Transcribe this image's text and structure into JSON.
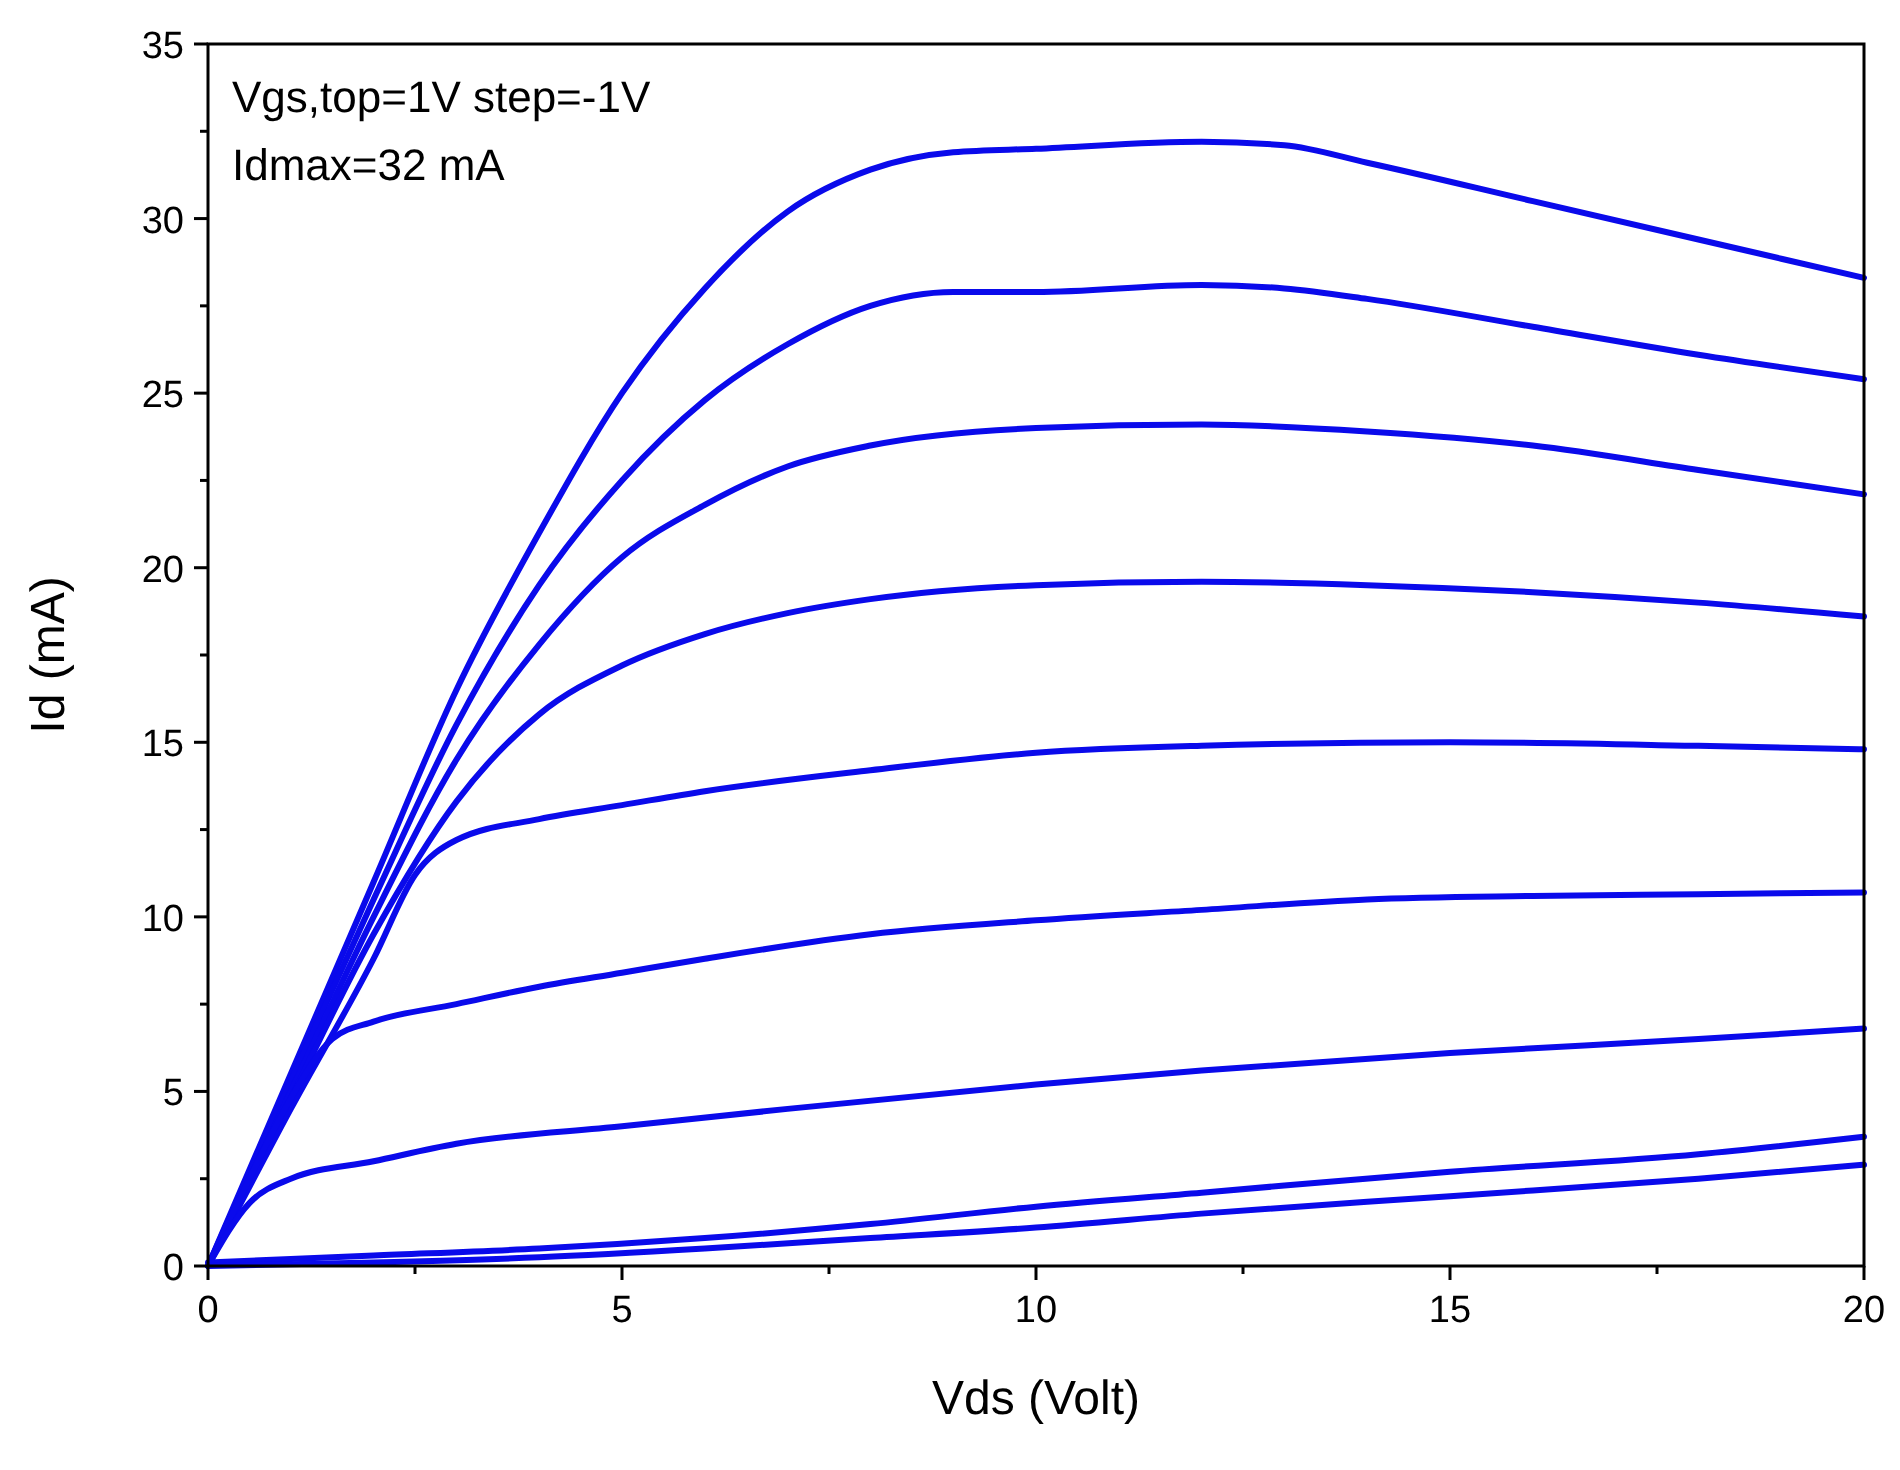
{
  "chart_data": {
    "type": "line",
    "xlabel": "Vds (Volt)",
    "ylabel": "Id (mA)",
    "annotations": [
      "Vgs,top=1V step=-1V",
      "Idmax=32 mA"
    ],
    "xlim": [
      0,
      20
    ],
    "ylim": [
      0,
      35
    ],
    "xticks": [
      0,
      {
        "value": 2.5,
        "label": null
      },
      5,
      {
        "value": 7.5,
        "label": null
      },
      10,
      {
        "value": 12.5,
        "label": null
      },
      15,
      {
        "value": 17.5,
        "label": null
      },
      20
    ],
    "yticks": [
      0,
      {
        "value": 2.5,
        "label": null
      },
      5,
      {
        "value": 7.5,
        "label": null
      },
      10,
      {
        "value": 12.5,
        "label": null
      },
      15,
      {
        "value": 17.5,
        "label": null
      },
      20,
      {
        "value": 22.5,
        "label": null
      },
      25,
      {
        "value": 27.5,
        "label": null
      },
      30,
      {
        "value": 32.5,
        "label": null
      },
      35
    ],
    "grid": false,
    "marker": "none",
    "line_style": "solid",
    "series": [
      {
        "color": "#0a0aeb",
        "x": [
          0,
          1,
          2,
          3,
          4,
          5,
          6,
          7,
          8,
          9,
          10,
          12,
          13,
          14,
          16,
          18,
          20
        ],
        "values": [
          0,
          5.5,
          11,
          16.5,
          21,
          25,
          28,
          30.2,
          31.4,
          31.9,
          32,
          32.2,
          32.1,
          31.6,
          30.5,
          29.4,
          28.3
        ]
      },
      {
        "color": "#0a0aeb",
        "x": [
          0,
          1,
          2,
          3,
          4,
          5,
          6,
          7,
          8,
          9,
          10,
          12,
          13,
          14,
          16,
          18,
          20
        ],
        "values": [
          0,
          5.3,
          10.5,
          15.5,
          19.5,
          22.5,
          24.8,
          26.4,
          27.5,
          27.9,
          27.9,
          28.1,
          28,
          27.7,
          26.9,
          26.1,
          25.4
        ]
      },
      {
        "color": "#0a0aeb",
        "x": [
          0,
          1,
          2,
          3,
          4,
          5,
          6,
          7,
          8,
          10,
          12,
          14,
          16,
          18,
          20
        ],
        "values": [
          0,
          5,
          10,
          14.5,
          17.8,
          20.3,
          21.8,
          22.9,
          23.5,
          24,
          24.1,
          23.9,
          23.5,
          22.8,
          22.1
        ]
      },
      {
        "color": "#0a0aeb",
        "x": [
          0,
          1,
          2,
          3,
          4,
          5,
          6,
          7,
          8,
          10,
          12,
          14,
          16,
          18,
          20
        ],
        "values": [
          0,
          4.8,
          9.5,
          13.3,
          15.8,
          17.2,
          18.1,
          18.7,
          19.1,
          19.5,
          19.6,
          19.5,
          19.3,
          19,
          18.6
        ]
      },
      {
        "color": "#0a0aeb",
        "x": [
          0,
          1,
          2,
          2.5,
          3,
          4,
          5,
          6,
          8,
          10,
          12,
          15,
          18,
          20
        ],
        "values": [
          0,
          4.5,
          8.8,
          11.2,
          12.2,
          12.8,
          13.2,
          13.6,
          14.2,
          14.7,
          14.9,
          15,
          14.9,
          14.8
        ]
      },
      {
        "color": "#0a0aeb",
        "x": [
          0,
          0.5,
          1,
          1.5,
          2,
          3,
          4,
          5,
          6,
          8,
          10,
          12,
          14,
          16,
          18,
          20
        ],
        "values": [
          0,
          2.5,
          4.8,
          6.5,
          7,
          7.5,
          8,
          8.4,
          8.8,
          9.5,
          9.9,
          10.2,
          10.5,
          10.6,
          10.65,
          10.7
        ]
      },
      {
        "color": "#0a0aeb",
        "x": [
          0,
          0.5,
          1,
          2,
          3,
          5,
          7,
          10,
          12,
          15,
          18,
          20
        ],
        "values": [
          0,
          1.8,
          2.5,
          3,
          3.5,
          4,
          4.5,
          5.2,
          5.6,
          6.1,
          6.5,
          6.8
        ]
      },
      {
        "color": "#0a0aeb",
        "x": [
          0,
          2,
          4,
          6,
          8,
          10,
          12,
          15,
          18,
          20
        ],
        "values": [
          0.1,
          0.3,
          0.5,
          0.8,
          1.2,
          1.7,
          2.1,
          2.7,
          3.2,
          3.7
        ]
      },
      {
        "color": "#0a0aeb",
        "x": [
          0,
          2,
          4,
          6,
          8,
          10,
          12,
          15,
          18,
          20
        ],
        "values": [
          0,
          0.1,
          0.25,
          0.5,
          0.8,
          1.1,
          1.5,
          2,
          2.5,
          2.9
        ]
      }
    ]
  }
}
